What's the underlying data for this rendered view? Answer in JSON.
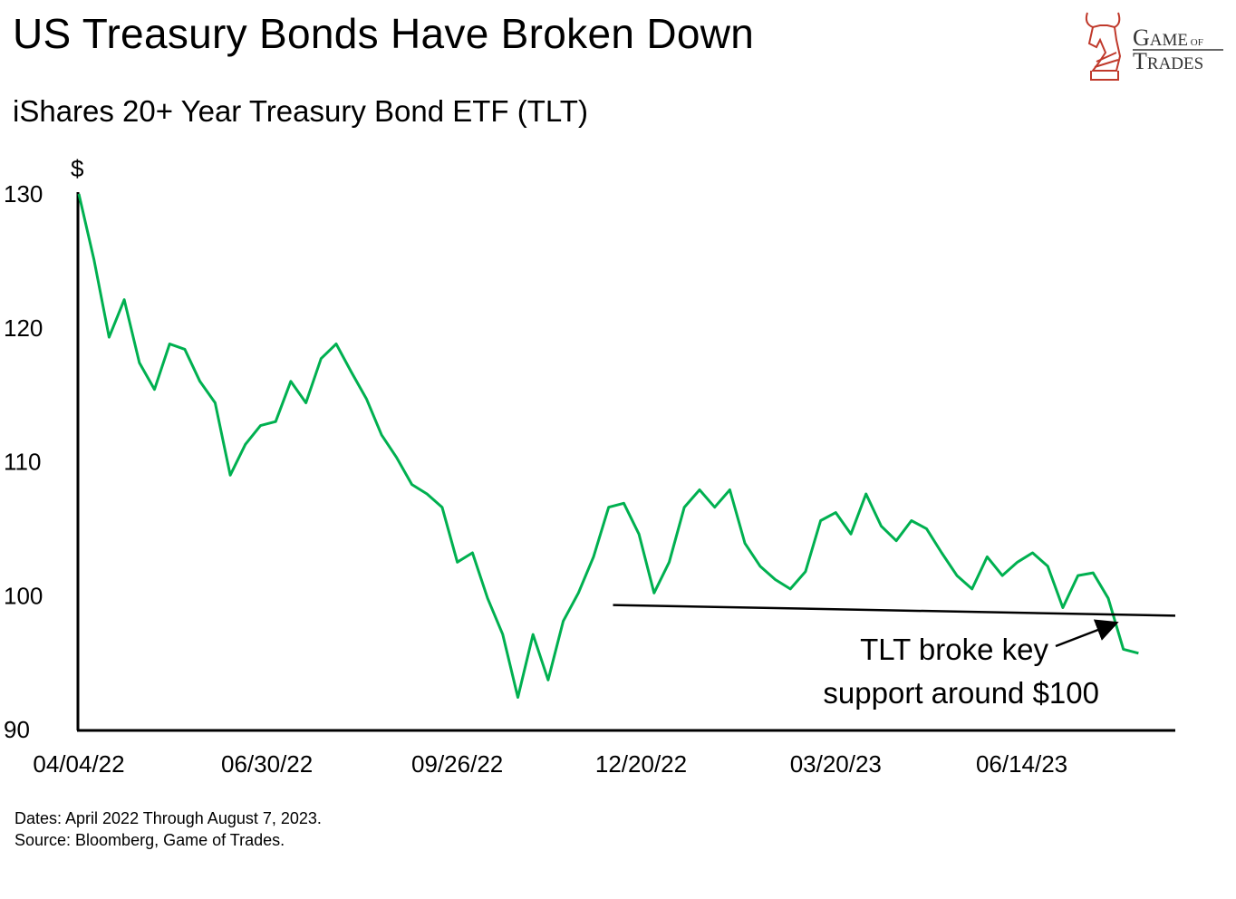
{
  "header": {
    "title": "US Treasury Bonds Have Broken Down",
    "subtitle": "iShares 20+ Year Treasury Bond ETF (TLT)",
    "logo_text": "Game of Trades"
  },
  "footer": {
    "dates_note": "Dates: April 2022 Through August 7, 2023.",
    "source_note": "Source: Bloomberg, Game of Trades."
  },
  "colors": {
    "line": "#00b050",
    "axis": "#000000",
    "logo": "#c0392b"
  },
  "chart_data": {
    "type": "line",
    "title": "iShares 20+ Year Treasury Bond ETF (TLT)",
    "ylabel": "$",
    "xlabel": "",
    "ylim": [
      90,
      130
    ],
    "xlim": [
      "2022-04-04",
      "2023-08-24"
    ],
    "yticks": [
      90,
      100,
      110,
      120,
      130
    ],
    "xticks": [
      "2022-04-04",
      "2022-06-30",
      "2022-09-26",
      "2022-12-20",
      "2023-03-20",
      "2023-06-14"
    ],
    "xtick_labels": [
      "04/04/22",
      "06/30/22",
      "09/26/22",
      "12/20/22",
      "03/20/23",
      "06/14/23"
    ],
    "grid": false,
    "series": [
      {
        "start": "2022-04-04",
        "frequency": "weekly",
        "end": "2023-08-07",
        "values": [
          130,
          125.1,
          119.3,
          122.1,
          117.4,
          115.4,
          118.8,
          118.4,
          116,
          114.4,
          109,
          111.3,
          112.7,
          113,
          116,
          114.4,
          117.7,
          118.8,
          116.7,
          114.7,
          112,
          110.3,
          108.3,
          107.6,
          106.6,
          102.5,
          103.2,
          99.8,
          97.1,
          92.4,
          97.1,
          93.7,
          98.1,
          100.2,
          102.9,
          106.6,
          106.9,
          104.6,
          100.2,
          102.5,
          106.6,
          107.9,
          106.6,
          107.9,
          103.9,
          102.2,
          101.2,
          100.5,
          101.8,
          105.6,
          106.2,
          104.6,
          107.6,
          105.2,
          104.1,
          105.6,
          105,
          103.2,
          101.5,
          100.5,
          102.9,
          101.5,
          102.5,
          103.2,
          102.2,
          99.1,
          101.5,
          101.7,
          99.8,
          96,
          95.7
        ]
      }
    ],
    "support_line": {
      "start": [
        "2022-12-07",
        99.3
      ],
      "end": [
        "2023-08-24",
        98.5
      ]
    },
    "annotation": {
      "line1": "TLT broke key",
      "line2": "support around $100"
    }
  }
}
